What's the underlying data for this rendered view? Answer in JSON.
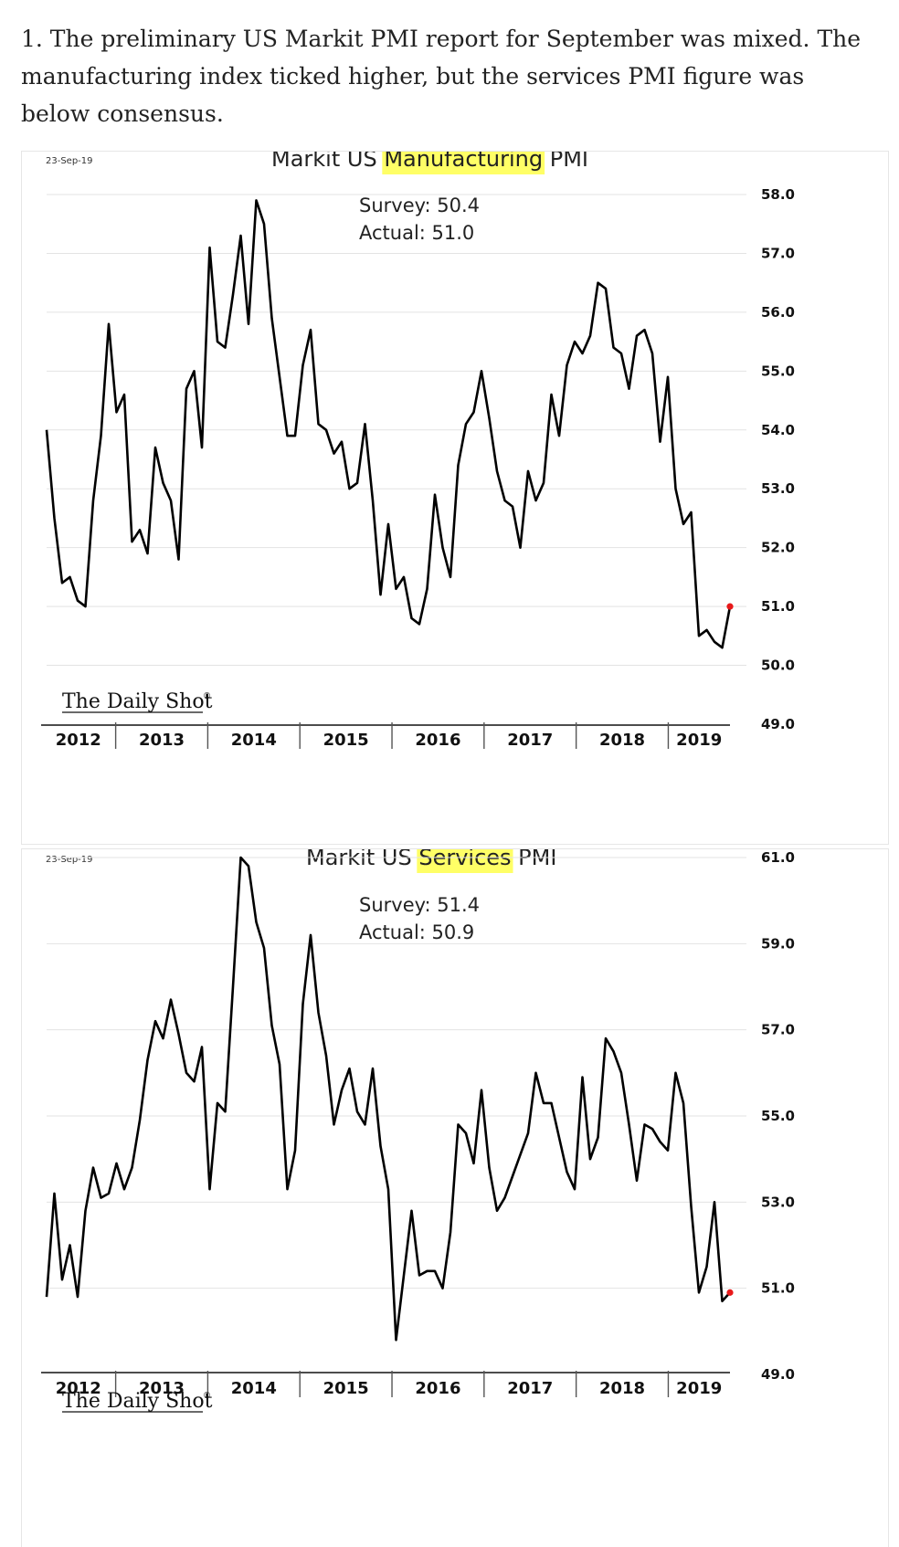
{
  "intro": {
    "text": "1. The preliminary US Markit PMI report for September was mixed. The manufacturing index ticked higher, but the services PMI figure was below consensus."
  },
  "colors": {
    "highlight": "#ffff66",
    "line": "#000000",
    "latest_point": "#e8191a",
    "gridline": "#e3e3e3"
  },
  "chart_data": [
    {
      "type": "line",
      "date": "23-Sep-19",
      "title": "Markit US Manufacturing PMI",
      "title_prefix": "Markit US ",
      "title_highlight": "Manufacturing",
      "title_suffix": " PMI",
      "survey_label": "Survey: 50.4",
      "actual_label": "Actual: 51.0",
      "brand": "The Daily Shot",
      "brand_mark": "®",
      "xlabel": "",
      "ylabel": "",
      "y_axis_side": "right",
      "ylim": [
        49.0,
        58.0
      ],
      "yticks": [
        "58.0",
        "57.0",
        "56.0",
        "55.0",
        "54.0",
        "53.0",
        "52.0",
        "51.0",
        "50.0",
        "49.0"
      ],
      "grid": true,
      "years": [
        "2012",
        "2013",
        "2014",
        "2015",
        "2016",
        "2017",
        "2018",
        "2019"
      ],
      "x_start_year": 2012.25,
      "x_end_year": 2019.67,
      "series": [
        {
          "name": "Markit US Manufacturing PMI",
          "values": [
            54.0,
            52.5,
            51.4,
            51.5,
            51.1,
            51.0,
            52.8,
            53.9,
            55.8,
            54.3,
            54.6,
            52.1,
            52.3,
            51.9,
            53.7,
            53.1,
            52.8,
            51.8,
            54.7,
            55.0,
            53.7,
            57.1,
            55.5,
            55.4,
            56.3,
            57.3,
            55.8,
            57.9,
            57.5,
            55.9,
            54.9,
            53.9,
            53.9,
            55.1,
            55.7,
            54.1,
            54.0,
            53.6,
            53.8,
            53.0,
            53.1,
            54.1,
            52.8,
            51.2,
            52.4,
            51.3,
            51.5,
            50.8,
            50.7,
            51.3,
            52.9,
            52.0,
            51.5,
            53.4,
            54.1,
            54.3,
            55.0,
            54.2,
            53.3,
            52.8,
            52.7,
            52.0,
            53.3,
            52.8,
            53.1,
            54.6,
            53.9,
            55.1,
            55.5,
            55.3,
            55.6,
            56.5,
            56.4,
            55.4,
            55.3,
            54.7,
            55.6,
            55.7,
            55.3,
            53.8,
            54.9,
            53.0,
            52.4,
            52.6,
            50.5,
            50.6,
            50.4,
            50.3,
            51.0
          ]
        }
      ],
      "latest_value": 51.0
    },
    {
      "type": "line",
      "date": "23-Sep-19",
      "title": "Markit US Services PMI",
      "title_prefix": "Markit US ",
      "title_highlight": "Services",
      "title_suffix": " PMI",
      "survey_label": "Survey: 51.4",
      "actual_label": "Actual: 50.9",
      "brand": "The Daily Shot",
      "brand_mark": "®",
      "xlabel": "",
      "ylabel": "",
      "y_axis_side": "right",
      "ylim": [
        49.0,
        61.0
      ],
      "yticks": [
        "61.0",
        "59.0",
        "57.0",
        "55.0",
        "53.0",
        "51.0",
        "49.0"
      ],
      "grid": true,
      "years": [
        "2012",
        "2013",
        "2014",
        "2015",
        "2016",
        "2017",
        "2018",
        "2019"
      ],
      "x_start_year": 2012.25,
      "x_end_year": 2019.67,
      "series": [
        {
          "name": "Markit US Services PMI",
          "values": [
            50.8,
            53.2,
            51.2,
            52.0,
            50.8,
            52.8,
            53.8,
            53.1,
            53.2,
            53.9,
            53.3,
            53.8,
            54.9,
            56.3,
            57.2,
            56.8,
            57.7,
            56.9,
            56.0,
            55.8,
            56.6,
            53.3,
            55.3,
            55.1,
            58.0,
            61.0,
            60.8,
            59.5,
            58.9,
            57.1,
            56.2,
            53.3,
            54.2,
            57.6,
            59.2,
            57.4,
            56.4,
            54.8,
            55.6,
            56.1,
            55.1,
            54.8,
            56.1,
            54.3,
            53.3,
            49.8,
            51.3,
            52.8,
            51.3,
            51.4,
            51.4,
            51.0,
            52.3,
            54.8,
            54.6,
            53.9,
            55.6,
            53.8,
            52.8,
            53.1,
            53.6,
            54.1,
            54.6,
            56.0,
            55.3,
            55.3,
            54.5,
            53.7,
            53.3,
            55.9,
            54.0,
            54.5,
            56.8,
            56.5,
            56.0,
            54.8,
            53.5,
            54.8,
            54.7,
            54.4,
            54.2,
            56.0,
            55.3,
            52.9,
            50.9,
            51.5,
            53.0,
            50.7,
            50.9
          ]
        }
      ],
      "latest_value": 50.9
    }
  ]
}
